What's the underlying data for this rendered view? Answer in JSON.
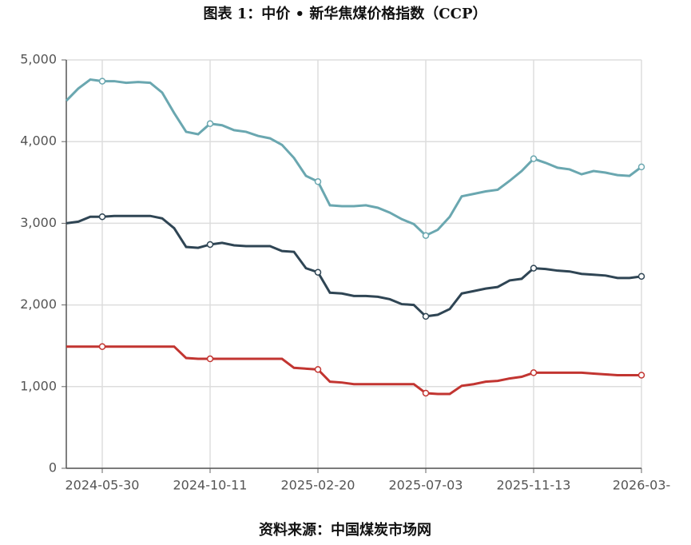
{
  "chart_data": {
    "type": "line",
    "title": "图表 1：中价 • 新华焦煤价格指数（CCP）",
    "source": "资料来源：中国煤炭市场网",
    "categories": [
      null,
      null,
      null,
      "2024-05-30",
      null,
      null,
      null,
      null,
      null,
      null,
      null,
      null,
      "2024-10-11",
      null,
      null,
      null,
      null,
      null,
      null,
      null,
      null,
      "2025-02-20",
      null,
      null,
      null,
      null,
      null,
      null,
      null,
      null,
      "2025-07-03",
      null,
      null,
      null,
      null,
      null,
      null,
      null,
      null,
      "2025-11-13",
      null,
      null,
      null,
      null,
      null,
      null,
      null,
      null,
      "2026-03-"
    ],
    "series": [
      {
        "color": "#6aa7b0",
        "values": [
          4500,
          4650,
          4760,
          4740,
          4740,
          4720,
          4730,
          4720,
          4600,
          4350,
          4120,
          4090,
          4220,
          4200,
          4140,
          4120,
          4070,
          4040,
          3960,
          3800,
          3580,
          3510,
          3220,
          3210,
          3210,
          3220,
          3190,
          3130,
          3050,
          2990,
          2850,
          2920,
          3080,
          3330,
          3360,
          3390,
          3410,
          3520,
          3640,
          3790,
          3740,
          3680,
          3660,
          3600,
          3640,
          3620,
          3590,
          3580,
          3690
        ]
      },
      {
        "color": "#2f4554",
        "values": [
          3000,
          3020,
          3080,
          3080,
          3090,
          3090,
          3090,
          3090,
          3060,
          2940,
          2710,
          2700,
          2740,
          2760,
          2730,
          2720,
          2720,
          2720,
          2660,
          2650,
          2450,
          2400,
          2150,
          2140,
          2110,
          2110,
          2100,
          2070,
          2010,
          2000,
          1860,
          1880,
          1950,
          2140,
          2170,
          2200,
          2220,
          2300,
          2320,
          2450,
          2440,
          2420,
          2410,
          2380,
          2370,
          2360,
          2330,
          2330,
          2350
        ]
      },
      {
        "color": "#c23531",
        "values": [
          1490,
          1490,
          1490,
          1490,
          1490,
          1490,
          1490,
          1490,
          1490,
          1490,
          1350,
          1340,
          1340,
          1340,
          1340,
          1340,
          1340,
          1340,
          1340,
          1230,
          1220,
          1210,
          1060,
          1050,
          1030,
          1030,
          1030,
          1030,
          1030,
          1030,
          920,
          910,
          910,
          1010,
          1030,
          1060,
          1070,
          1100,
          1120,
          1170,
          1170,
          1170,
          1170,
          1170,
          1160,
          1150,
          1140,
          1140,
          1140
        ]
      }
    ],
    "ylim": [
      0,
      5000
    ],
    "yticks": [
      0,
      {
        "value": 1000,
        "label": "1,000"
      },
      {
        "value": 2000,
        "label": "2,000"
      },
      {
        "value": 3000,
        "label": "3,000"
      },
      {
        "value": 4000,
        "label": "4,000"
      },
      {
        "value": 5000,
        "label": "5,000"
      }
    ],
    "grid": true
  }
}
